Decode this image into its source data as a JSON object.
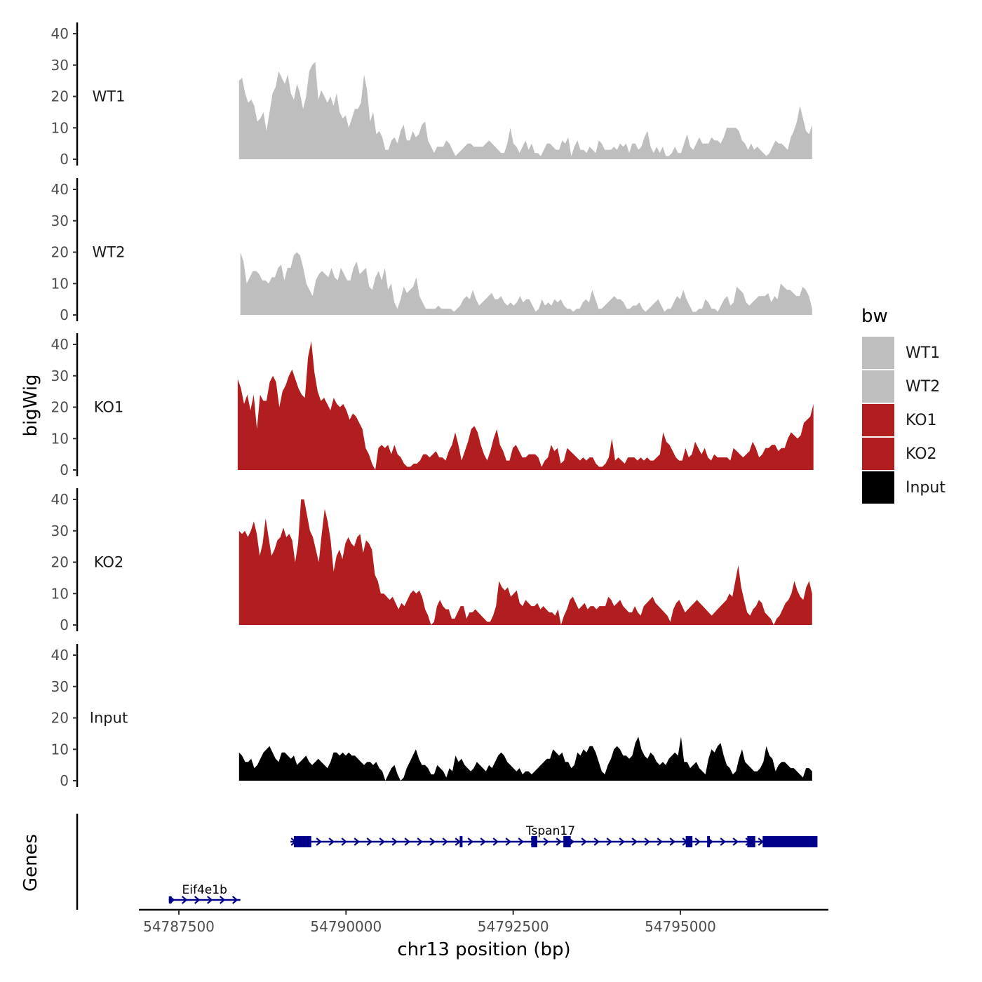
{
  "chart_data": {
    "type": "area",
    "chromosome": "chr13",
    "xlabel": "chr13 position (bp)",
    "ylabel": "bigWig",
    "genes_label": "Genes",
    "xlim": [
      54786900,
      54797050
    ],
    "x_ticks": [
      54787500,
      54790000,
      54792500,
      54795000
    ],
    "x_tick_labels": [
      "54787500",
      "54790000",
      "54792500",
      "54795000"
    ],
    "ylim": [
      0,
      43
    ],
    "y_ticks": [
      0,
      10,
      20,
      30,
      40
    ],
    "y_tick_labels": [
      "0",
      "10",
      "20",
      "30",
      "40"
    ],
    "legend": {
      "title": "bw",
      "position": "right",
      "entries": [
        {
          "label": "WT1",
          "color": "#bebebe"
        },
        {
          "label": "WT2",
          "color": "#bebebe"
        },
        {
          "label": "KO1",
          "color": "#b21d1f"
        },
        {
          "label": "KO2",
          "color": "#b21d1f"
        },
        {
          "label": "Input",
          "color": "#000000"
        }
      ]
    },
    "tracks": [
      {
        "name": "WT1",
        "color": "#bebebe",
        "x_start": 54788400,
        "x_end": 54796970,
        "values": [
          25,
          26,
          21,
          18,
          19,
          17,
          12,
          13,
          15,
          9,
          15,
          21,
          23,
          28,
          26,
          24,
          27,
          21,
          19,
          24,
          21,
          16,
          20,
          28,
          30,
          31,
          19,
          22,
          20,
          18,
          20,
          17,
          21,
          15,
          13,
          14,
          10,
          13,
          16,
          16,
          18,
          27,
          22,
          12,
          15,
          8,
          9,
          7,
          3,
          3,
          6,
          7,
          5,
          9,
          11,
          6,
          6,
          9,
          7,
          8,
          11,
          12,
          6,
          4,
          2,
          4,
          4,
          4,
          6,
          5,
          3,
          1,
          2,
          3,
          4,
          5,
          5,
          4,
          4,
          4,
          4,
          5,
          6,
          5,
          4,
          3,
          2,
          2,
          5,
          10,
          5,
          4,
          2,
          4,
          6,
          3,
          5,
          2,
          2,
          1,
          3,
          5,
          5,
          4,
          3,
          3,
          6,
          5,
          7,
          1,
          4,
          6,
          3,
          3,
          2,
          4,
          3,
          2,
          6,
          5,
          3,
          3,
          3,
          4,
          3,
          5,
          4,
          5,
          2,
          5,
          5,
          3,
          4,
          7,
          9,
          4,
          2,
          4,
          2,
          4,
          1,
          1,
          2,
          4,
          2,
          2,
          5,
          8,
          4,
          3,
          5,
          7,
          5,
          5,
          5,
          7,
          6,
          6,
          5,
          7,
          10,
          10,
          10,
          10,
          9,
          6,
          5,
          3,
          5,
          3,
          4,
          3,
          2,
          1,
          2,
          4,
          6,
          5,
          5,
          4,
          3,
          7,
          9,
          12,
          17,
          13,
          9,
          8,
          11
        ],
        "draw_offset": 0
      },
      {
        "name": "WT2",
        "color": "#bebebe",
        "x_start": 54788420,
        "x_end": 54796970,
        "values": [
          20,
          17,
          10,
          12,
          14,
          14,
          13,
          11,
          11,
          10,
          12,
          12,
          15,
          16,
          11,
          15,
          15,
          19,
          20,
          19,
          15,
          10,
          8,
          6,
          11,
          13,
          14,
          13,
          12,
          15,
          12,
          11,
          15,
          13,
          11,
          11,
          15,
          17,
          13,
          14,
          15,
          9,
          8,
          12,
          14,
          11,
          15,
          8,
          10,
          4,
          2,
          5,
          9,
          7,
          8,
          9,
          12,
          6,
          4,
          2,
          2,
          2,
          2,
          3,
          2,
          2,
          2,
          2,
          1,
          2,
          3,
          5,
          6,
          5,
          8,
          5,
          3,
          4,
          5,
          6,
          7,
          5,
          5,
          6,
          4,
          3,
          4,
          3,
          4,
          6,
          4,
          5,
          5,
          3,
          1,
          2,
          5,
          3,
          4,
          3,
          5,
          4,
          5,
          3,
          2,
          2,
          1,
          2,
          2,
          4,
          5,
          4,
          8,
          5,
          2,
          2,
          3,
          4,
          5,
          6,
          5,
          5,
          4,
          2,
          2,
          3,
          3,
          4,
          2,
          1,
          2,
          3,
          4,
          5,
          3,
          1,
          2,
          2,
          4,
          6,
          5,
          8,
          5,
          3,
          1,
          1,
          2,
          2,
          5,
          4,
          2,
          2,
          1,
          3,
          5,
          6,
          3,
          4,
          9,
          8,
          7,
          4,
          3,
          4,
          5,
          6,
          6,
          6,
          7,
          4,
          6,
          5,
          10,
          9,
          8,
          8,
          7,
          6,
          6,
          9,
          8,
          6,
          2
        ],
        "draw_offset": 0
      },
      {
        "name": "KO1",
        "color": "#b21d1f",
        "x_start": 54788380,
        "x_end": 54796990,
        "values": [
          29,
          26,
          21,
          24,
          19,
          24,
          13,
          24,
          22,
          22,
          28,
          30,
          28,
          20,
          25,
          27,
          30,
          32,
          29,
          26,
          24,
          23,
          36,
          41,
          31,
          25,
          22,
          23,
          21,
          19,
          23,
          21,
          20,
          21,
          19,
          16,
          18,
          17,
          15,
          13,
          7,
          5,
          2,
          0,
          7,
          8,
          7,
          8,
          5,
          8,
          5,
          4,
          2,
          1,
          1,
          2,
          2,
          3,
          5,
          5,
          4,
          5,
          6,
          4,
          4,
          3,
          6,
          8,
          12,
          8,
          3,
          6,
          9,
          13,
          14,
          12,
          8,
          5,
          3,
          6,
          10,
          13,
          8,
          6,
          3,
          3,
          7,
          8,
          6,
          4,
          4,
          5,
          5,
          5,
          4,
          1,
          3,
          4,
          8,
          6,
          7,
          2,
          3,
          7,
          6,
          5,
          4,
          3,
          4,
          3,
          4,
          4,
          2,
          1,
          1,
          2,
          4,
          10,
          3,
          4,
          3,
          2,
          4,
          4,
          4,
          3,
          4,
          3,
          4,
          3,
          3,
          4,
          5,
          12,
          9,
          8,
          6,
          4,
          3,
          3,
          7,
          4,
          5,
          9,
          7,
          5,
          7,
          4,
          3,
          5,
          4,
          4,
          4,
          4,
          3,
          7,
          6,
          5,
          4,
          5,
          6,
          9,
          7,
          4,
          5,
          7,
          7,
          8,
          8,
          6,
          7,
          7,
          10,
          12,
          11,
          10,
          11,
          15,
          16,
          17,
          21
        ],
        "draw_offset": 0
      },
      {
        "name": "KO2",
        "color": "#b21d1f",
        "x_start": 54788400,
        "x_end": 54796970,
        "values": [
          30,
          29,
          30,
          28,
          30,
          33,
          29,
          22,
          26,
          34,
          28,
          22,
          24,
          27,
          28,
          31,
          28,
          29,
          27,
          20,
          26,
          40,
          40,
          35,
          30,
          28,
          24,
          20,
          29,
          37,
          33,
          27,
          17,
          22,
          24,
          21,
          26,
          28,
          26,
          25,
          28,
          29,
          23,
          27,
          26,
          24,
          16,
          14,
          10,
          10,
          9,
          8,
          9,
          7,
          5,
          7,
          6,
          8,
          10,
          11,
          10,
          11,
          9,
          5,
          3,
          0,
          1,
          6,
          8,
          6,
          5,
          5,
          2,
          2,
          4,
          6,
          6,
          2,
          4,
          4,
          5,
          4,
          3,
          2,
          1,
          1,
          3,
          6,
          14,
          12,
          11,
          12,
          9,
          10,
          11,
          7,
          6,
          8,
          7,
          6,
          6,
          7,
          5,
          6,
          5,
          4,
          4,
          3,
          5,
          0,
          3,
          5,
          8,
          9,
          7,
          5,
          6,
          7,
          5,
          6,
          6,
          5,
          6,
          6,
          6,
          9,
          8,
          6,
          7,
          8,
          6,
          5,
          4,
          4,
          6,
          4,
          3,
          6,
          7,
          8,
          9,
          7,
          6,
          5,
          4,
          3,
          1,
          5,
          7,
          8,
          6,
          4,
          5,
          6,
          7,
          8,
          7,
          6,
          5,
          4,
          3,
          4,
          5,
          6,
          7,
          8,
          10,
          9,
          14,
          19,
          12,
          8,
          4,
          3,
          5,
          6,
          8,
          7,
          4,
          3,
          2,
          0,
          2,
          3,
          5,
          7,
          8,
          10,
          14,
          11,
          9,
          8,
          12,
          14,
          10
        ],
        "draw_offset": 0
      },
      {
        "name": "Input",
        "color": "#000000",
        "x_start": 54788400,
        "x_end": 54796970,
        "values": [
          9,
          8,
          6,
          6,
          7,
          4,
          5,
          7,
          9,
          10,
          11,
          9,
          7,
          6,
          9,
          9,
          8,
          7,
          8,
          5,
          6,
          7,
          8,
          6,
          5,
          6,
          7,
          6,
          5,
          4,
          6,
          9,
          9,
          8,
          9,
          8,
          9,
          8,
          8,
          7,
          6,
          5,
          6,
          6,
          5,
          6,
          4,
          3,
          0,
          2,
          4,
          5,
          2,
          0,
          1,
          4,
          6,
          8,
          10,
          7,
          5,
          5,
          4,
          2,
          2,
          5,
          4,
          3,
          1,
          4,
          3,
          8,
          6,
          7,
          5,
          4,
          3,
          4,
          6,
          5,
          4,
          3,
          5,
          4,
          6,
          8,
          9,
          8,
          6,
          5,
          4,
          3,
          4,
          2,
          3,
          3,
          2,
          3,
          4,
          5,
          6,
          7,
          7,
          10,
          9,
          8,
          9,
          6,
          6,
          4,
          5,
          9,
          8,
          10,
          9,
          11,
          11,
          9,
          6,
          3,
          2,
          5,
          7,
          10,
          11,
          10,
          8,
          8,
          7,
          8,
          12,
          14,
          10,
          8,
          7,
          9,
          8,
          6,
          5,
          6,
          5,
          7,
          8,
          9,
          8,
          14,
          6,
          6,
          4,
          5,
          6,
          4,
          3,
          2,
          7,
          10,
          9,
          11,
          12,
          8,
          5,
          4,
          2,
          3,
          7,
          10,
          6,
          5,
          4,
          3,
          3,
          4,
          6,
          11,
          8,
          7,
          3,
          5,
          6,
          6,
          5,
          4,
          4,
          3,
          2,
          1,
          4,
          4,
          3
        ],
        "draw_offset": 0
      }
    ],
    "genes": [
      {
        "name": "Eif4e1b",
        "start": 54787350,
        "end": 54788420,
        "strand": "+",
        "exons": [
          [
            54787350,
            54787370
          ]
        ]
      },
      {
        "name": "Tspan17",
        "start": 54789170,
        "end": 54797050,
        "strand": "+",
        "exons": [
          [
            54789220,
            54789480
          ],
          [
            54791700,
            54791710
          ],
          [
            54792770,
            54792860
          ],
          [
            54793250,
            54793360
          ],
          [
            54795080,
            54795180
          ],
          [
            54795400,
            54795440
          ],
          [
            54796000,
            54796120
          ],
          [
            54796230,
            54797050
          ]
        ]
      }
    ]
  }
}
